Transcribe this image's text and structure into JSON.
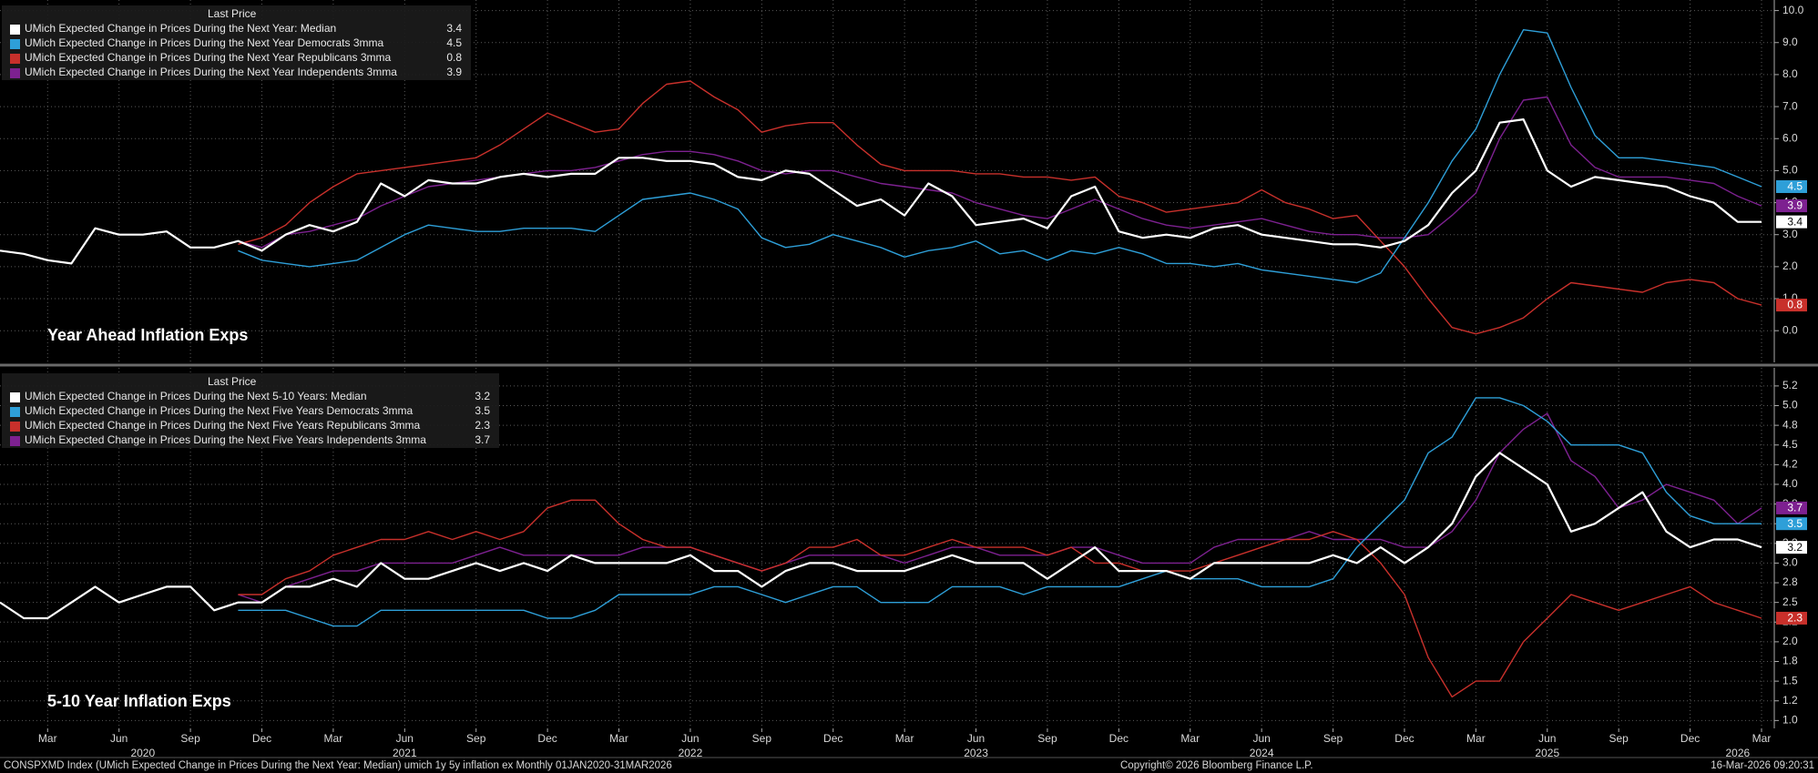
{
  "chart_data": [
    {
      "type": "line",
      "title": "Year Ahead Inflation Exps",
      "legend_title": "Last Price",
      "x": [
        "2020-01",
        "2020-02",
        "2020-03",
        "2020-04",
        "2020-05",
        "2020-06",
        "2020-07",
        "2020-08",
        "2020-09",
        "2020-10",
        "2020-11",
        "2020-12",
        "2021-01",
        "2021-02",
        "2021-03",
        "2021-04",
        "2021-05",
        "2021-06",
        "2021-07",
        "2021-08",
        "2021-09",
        "2021-10",
        "2021-11",
        "2021-12",
        "2022-01",
        "2022-02",
        "2022-03",
        "2022-04",
        "2022-05",
        "2022-06",
        "2022-07",
        "2022-08",
        "2022-09",
        "2022-10",
        "2022-11",
        "2022-12",
        "2023-01",
        "2023-02",
        "2023-03",
        "2023-04",
        "2023-05",
        "2023-06",
        "2023-07",
        "2023-08",
        "2023-09",
        "2023-10",
        "2023-11",
        "2023-12",
        "2024-01",
        "2024-02",
        "2024-03",
        "2024-04",
        "2024-05",
        "2024-06",
        "2024-07",
        "2024-08",
        "2024-09",
        "2024-10",
        "2024-11",
        "2024-12",
        "2025-01",
        "2025-02",
        "2025-03",
        "2025-04",
        "2025-05",
        "2025-06",
        "2025-07",
        "2025-08",
        "2025-09",
        "2025-10",
        "2025-11",
        "2025-12",
        "2026-01",
        "2026-02",
        "2026-03"
      ],
      "xlim": [
        "2020-01",
        "2026-03"
      ],
      "ylim": [
        -0.99,
        10.33
      ],
      "yticks": [
        {
          "value": 0,
          "label": "0.0"
        },
        {
          "value": 1,
          "label": "1.0"
        },
        {
          "value": 2,
          "label": "2.0"
        },
        {
          "value": 3,
          "label": "3.0"
        },
        {
          "value": 4,
          "label": "4.0"
        },
        {
          "value": 5,
          "label": "5.0"
        },
        {
          "value": 6,
          "label": "6.0"
        },
        {
          "value": 7,
          "label": "7.0"
        },
        {
          "value": 8,
          "label": "8.0"
        },
        {
          "value": 9,
          "label": "9.0"
        },
        {
          "value": 10,
          "label": "10.0"
        }
      ],
      "grid": true,
      "series": [
        {
          "name": "UMich Expected Change in Prices During the Next Year: Median",
          "color": "#ffffff",
          "values": [
            2.5,
            2.4,
            2.2,
            2.1,
            3.2,
            3.0,
            3.0,
            3.1,
            2.6,
            2.6,
            2.8,
            2.5,
            3.0,
            3.3,
            3.1,
            3.4,
            4.6,
            4.2,
            4.7,
            4.6,
            4.6,
            4.8,
            4.9,
            4.8,
            4.9,
            4.9,
            5.4,
            5.4,
            5.3,
            5.3,
            5.2,
            4.8,
            4.7,
            5.0,
            4.9,
            4.4,
            3.9,
            4.1,
            3.6,
            4.6,
            4.2,
            3.3,
            3.4,
            3.5,
            3.2,
            4.2,
            4.5,
            3.1,
            2.9,
            3.0,
            2.9,
            3.2,
            3.3,
            3.0,
            2.9,
            2.8,
            2.7,
            2.7,
            2.6,
            2.8,
            3.3,
            4.3,
            5.0,
            6.5,
            6.6,
            5.0,
            4.5,
            4.8,
            4.7,
            4.6,
            4.5,
            4.2,
            4.0,
            3.4,
            3.4
          ]
        },
        {
          "name": "UMich Expected Change in Prices During the Next Year Democrats 3mma",
          "color": "#2e9fd8",
          "values": [
            null,
            null,
            null,
            null,
            null,
            null,
            null,
            null,
            null,
            null,
            2.5,
            2.2,
            2.1,
            2.0,
            2.1,
            2.2,
            2.6,
            3.0,
            3.3,
            3.2,
            3.1,
            3.1,
            3.2,
            3.2,
            3.2,
            3.1,
            3.6,
            4.1,
            4.2,
            4.3,
            4.1,
            3.8,
            2.9,
            2.6,
            2.7,
            3.0,
            2.8,
            2.6,
            2.3,
            2.5,
            2.6,
            2.8,
            2.4,
            2.5,
            2.2,
            2.5,
            2.4,
            2.6,
            2.4,
            2.1,
            2.1,
            2.0,
            2.1,
            1.9,
            1.8,
            1.7,
            1.6,
            1.5,
            1.8,
            2.9,
            4.0,
            5.3,
            6.3,
            8.0,
            9.4,
            9.3,
            7.6,
            6.1,
            5.4,
            5.4,
            5.3,
            5.2,
            5.1,
            4.8,
            4.5
          ]
        },
        {
          "name": "UMich Expected Change in Prices During the Next Year Republicans 3mma",
          "color": "#c8302b",
          "values": [
            null,
            null,
            null,
            null,
            null,
            null,
            null,
            null,
            null,
            null,
            2.7,
            2.9,
            3.3,
            4.0,
            4.5,
            4.9,
            5.0,
            5.1,
            5.2,
            5.3,
            5.4,
            5.8,
            6.3,
            6.8,
            6.5,
            6.2,
            6.3,
            7.1,
            7.7,
            7.8,
            7.3,
            6.9,
            6.2,
            6.4,
            6.5,
            6.5,
            5.8,
            5.2,
            5.0,
            5.0,
            5.0,
            4.9,
            4.9,
            4.8,
            4.8,
            4.7,
            4.8,
            4.2,
            4.0,
            3.7,
            3.8,
            3.9,
            4.0,
            4.4,
            4.0,
            3.8,
            3.5,
            3.6,
            2.8,
            2.0,
            1.0,
            0.1,
            -0.1,
            0.1,
            0.4,
            1.0,
            1.5,
            1.4,
            1.3,
            1.2,
            1.5,
            1.6,
            1.5,
            1.0,
            0.8
          ]
        },
        {
          "name": "UMich Expected Change in Prices During the Next Year Independents 3mma",
          "color": "#7d2190",
          "values": [
            null,
            null,
            null,
            null,
            null,
            null,
            null,
            null,
            null,
            null,
            2.8,
            2.6,
            3.0,
            3.1,
            3.3,
            3.5,
            3.9,
            4.2,
            4.5,
            4.6,
            4.7,
            4.8,
            4.9,
            5.0,
            5.0,
            5.1,
            5.3,
            5.5,
            5.6,
            5.6,
            5.5,
            5.3,
            5.0,
            4.9,
            5.0,
            5.0,
            4.8,
            4.6,
            4.5,
            4.4,
            4.3,
            4.0,
            3.8,
            3.6,
            3.5,
            3.8,
            4.1,
            3.8,
            3.5,
            3.3,
            3.2,
            3.3,
            3.4,
            3.5,
            3.3,
            3.1,
            3.0,
            3.0,
            2.9,
            2.9,
            3.0,
            3.6,
            4.3,
            6.0,
            7.2,
            7.3,
            5.8,
            5.1,
            4.8,
            4.8,
            4.8,
            4.7,
            4.6,
            4.2,
            3.9
          ]
        }
      ]
    },
    {
      "type": "line",
      "title": "5-10 Year Inflation Exps",
      "legend_title": "Last Price",
      "x": [
        "2020-01",
        "2020-02",
        "2020-03",
        "2020-04",
        "2020-05",
        "2020-06",
        "2020-07",
        "2020-08",
        "2020-09",
        "2020-10",
        "2020-11",
        "2020-12",
        "2021-01",
        "2021-02",
        "2021-03",
        "2021-04",
        "2021-05",
        "2021-06",
        "2021-07",
        "2021-08",
        "2021-09",
        "2021-10",
        "2021-11",
        "2021-12",
        "2022-01",
        "2022-02",
        "2022-03",
        "2022-04",
        "2022-05",
        "2022-06",
        "2022-07",
        "2022-08",
        "2022-09",
        "2022-10",
        "2022-11",
        "2022-12",
        "2023-01",
        "2023-02",
        "2023-03",
        "2023-04",
        "2023-05",
        "2023-06",
        "2023-07",
        "2023-08",
        "2023-09",
        "2023-10",
        "2023-11",
        "2023-12",
        "2024-01",
        "2024-02",
        "2024-03",
        "2024-04",
        "2024-05",
        "2024-06",
        "2024-07",
        "2024-08",
        "2024-09",
        "2024-10",
        "2024-11",
        "2024-12",
        "2025-01",
        "2025-02",
        "2025-03",
        "2025-04",
        "2025-05",
        "2025-06",
        "2025-07",
        "2025-08",
        "2025-09",
        "2025-10",
        "2025-11",
        "2025-12",
        "2026-01",
        "2026-02",
        "2026-03"
      ],
      "xlim": [
        "2020-01",
        "2026-03"
      ],
      "ylim": [
        0.9,
        5.48
      ],
      "yticks": [
        {
          "value": 1,
          "label": "1.0"
        },
        {
          "value": 1.25,
          "label": "1.2"
        },
        {
          "value": 1.5,
          "label": "1.5"
        },
        {
          "value": 1.75,
          "label": "1.8"
        },
        {
          "value": 2,
          "label": "2.0"
        },
        {
          "value": 2.25,
          "label": "2.2"
        },
        {
          "value": 2.5,
          "label": "2.5"
        },
        {
          "value": 2.75,
          "label": "2.8"
        },
        {
          "value": 3,
          "label": "3.0"
        },
        {
          "value": 3.25,
          "label": "3.2"
        },
        {
          "value": 3.5,
          "label": "3.5"
        },
        {
          "value": 3.75,
          "label": "3.8"
        },
        {
          "value": 4,
          "label": "4.0"
        },
        {
          "value": 4.25,
          "label": "4.2"
        },
        {
          "value": 4.5,
          "label": "4.5"
        },
        {
          "value": 4.75,
          "label": "4.8"
        },
        {
          "value": 5,
          "label": "5.0"
        },
        {
          "value": 5.25,
          "label": "5.2"
        }
      ],
      "xticks": [
        {
          "value": "2020-03",
          "label": "Mar"
        },
        {
          "value": "2020-06",
          "label": "Jun"
        },
        {
          "value": "2020-09",
          "label": "Sep"
        },
        {
          "value": "2020-12",
          "label": "Dec"
        },
        {
          "value": "2021-03",
          "label": "Mar"
        },
        {
          "value": "2021-06",
          "label": "Jun"
        },
        {
          "value": "2021-09",
          "label": "Sep"
        },
        {
          "value": "2021-12",
          "label": "Dec"
        },
        {
          "value": "2022-03",
          "label": "Mar"
        },
        {
          "value": "2022-06",
          "label": "Jun"
        },
        {
          "value": "2022-09",
          "label": "Sep"
        },
        {
          "value": "2022-12",
          "label": "Dec"
        },
        {
          "value": "2023-03",
          "label": "Mar"
        },
        {
          "value": "2023-06",
          "label": "Jun"
        },
        {
          "value": "2023-09",
          "label": "Sep"
        },
        {
          "value": "2023-12",
          "label": "Dec"
        },
        {
          "value": "2024-03",
          "label": "Mar"
        },
        {
          "value": "2024-06",
          "label": "Jun"
        },
        {
          "value": "2024-09",
          "label": "Sep"
        },
        {
          "value": "2024-12",
          "label": "Dec"
        },
        {
          "value": "2025-03",
          "label": "Mar"
        },
        {
          "value": "2025-06",
          "label": "Jun"
        },
        {
          "value": "2025-09",
          "label": "Sep"
        },
        {
          "value": "2025-12",
          "label": "Dec"
        },
        {
          "value": "2026-03",
          "label": "Mar"
        }
      ],
      "year_labels": [
        {
          "value": "2020-07",
          "label": "2020"
        },
        {
          "value": "2021-06",
          "label": "2021"
        },
        {
          "value": "2022-06",
          "label": "2022"
        },
        {
          "value": "2023-06",
          "label": "2023"
        },
        {
          "value": "2024-06",
          "label": "2024"
        },
        {
          "value": "2025-06",
          "label": "2025"
        },
        {
          "value": "2026-02",
          "label": "2026"
        }
      ],
      "grid": true,
      "series": [
        {
          "name": "UMich Expected Change in Prices During the Next 5-10 Years: Median",
          "color": "#ffffff",
          "values": [
            2.5,
            2.3,
            2.3,
            2.5,
            2.7,
            2.5,
            2.6,
            2.7,
            2.7,
            2.4,
            2.5,
            2.5,
            2.7,
            2.7,
            2.8,
            2.7,
            3.0,
            2.8,
            2.8,
            2.9,
            3.0,
            2.9,
            3.0,
            2.9,
            3.1,
            3.0,
            3.0,
            3.0,
            3.0,
            3.1,
            2.9,
            2.9,
            2.7,
            2.9,
            3.0,
            3.0,
            2.9,
            2.9,
            2.9,
            3.0,
            3.1,
            3.0,
            3.0,
            3.0,
            2.8,
            3.0,
            3.2,
            2.9,
            2.9,
            2.9,
            2.8,
            3.0,
            3.0,
            3.0,
            3.0,
            3.0,
            3.1,
            3.0,
            3.2,
            3.0,
            3.2,
            3.5,
            4.1,
            4.4,
            4.2,
            4.0,
            3.4,
            3.5,
            3.7,
            3.9,
            3.4,
            3.2,
            3.3,
            3.3,
            3.2
          ]
        },
        {
          "name": "UMich Expected Change in Prices During the Next Five Years Democrats 3mma",
          "color": "#2e9fd8",
          "values": [
            null,
            null,
            null,
            null,
            null,
            null,
            null,
            null,
            null,
            null,
            2.4,
            2.4,
            2.4,
            2.3,
            2.2,
            2.2,
            2.4,
            2.4,
            2.4,
            2.4,
            2.4,
            2.4,
            2.4,
            2.3,
            2.3,
            2.4,
            2.6,
            2.6,
            2.6,
            2.6,
            2.7,
            2.7,
            2.6,
            2.5,
            2.6,
            2.7,
            2.7,
            2.5,
            2.5,
            2.5,
            2.7,
            2.7,
            2.7,
            2.6,
            2.7,
            2.7,
            2.7,
            2.7,
            2.8,
            2.9,
            2.8,
            2.8,
            2.8,
            2.7,
            2.7,
            2.7,
            2.8,
            3.2,
            3.5,
            3.8,
            4.4,
            4.6,
            5.1,
            5.1,
            5.0,
            4.8,
            4.5,
            4.5,
            4.5,
            4.4,
            3.9,
            3.6,
            3.5,
            3.5,
            3.5
          ]
        },
        {
          "name": "UMich Expected Change in Prices During the Next Five Years Republicans 3mma",
          "color": "#c8302b",
          "values": [
            null,
            null,
            null,
            null,
            null,
            null,
            null,
            null,
            null,
            null,
            2.6,
            2.6,
            2.8,
            2.9,
            3.1,
            3.2,
            3.3,
            3.3,
            3.4,
            3.3,
            3.4,
            3.3,
            3.4,
            3.7,
            3.8,
            3.8,
            3.5,
            3.3,
            3.2,
            3.2,
            3.1,
            3.0,
            2.9,
            3.0,
            3.2,
            3.2,
            3.3,
            3.1,
            3.1,
            3.2,
            3.3,
            3.2,
            3.2,
            3.2,
            3.1,
            3.2,
            3.0,
            3.0,
            2.9,
            2.9,
            2.9,
            3.0,
            3.1,
            3.2,
            3.3,
            3.3,
            3.4,
            3.3,
            3.0,
            2.6,
            1.8,
            1.3,
            1.5,
            1.5,
            2.0,
            2.3,
            2.6,
            2.5,
            2.4,
            2.5,
            2.6,
            2.7,
            2.5,
            2.4,
            2.3
          ]
        },
        {
          "name": "UMich Expected Change in Prices During the Next Five Years Independents 3mma",
          "color": "#7d2190",
          "values": [
            null,
            null,
            null,
            null,
            null,
            null,
            null,
            null,
            null,
            null,
            2.6,
            2.5,
            2.7,
            2.8,
            2.9,
            2.9,
            3.0,
            3.0,
            3.0,
            3.0,
            3.1,
            3.2,
            3.1,
            3.1,
            3.1,
            3.1,
            3.1,
            3.2,
            3.2,
            3.2,
            3.1,
            3.0,
            2.9,
            3.0,
            3.1,
            3.1,
            3.1,
            3.1,
            3.0,
            3.1,
            3.2,
            3.2,
            3.1,
            3.1,
            3.1,
            3.2,
            3.2,
            3.1,
            3.0,
            3.0,
            3.0,
            3.2,
            3.3,
            3.3,
            3.3,
            3.4,
            3.3,
            3.3,
            3.3,
            3.2,
            3.2,
            3.4,
            3.8,
            4.4,
            4.7,
            4.9,
            4.3,
            4.1,
            3.7,
            3.8,
            4.0,
            3.9,
            3.8,
            3.5,
            3.7
          ]
        }
      ]
    }
  ],
  "footer": {
    "left": "CONSPXMD Index (UMich Expected Change in Prices During the Next Year: Median) umich 1y 5y inflation ex Monthly 01JAN2020-31MAR2026",
    "center": "Copyright© 2026 Bloomberg Finance L.P.",
    "right": "16-Mar-2026 09:20:31"
  }
}
